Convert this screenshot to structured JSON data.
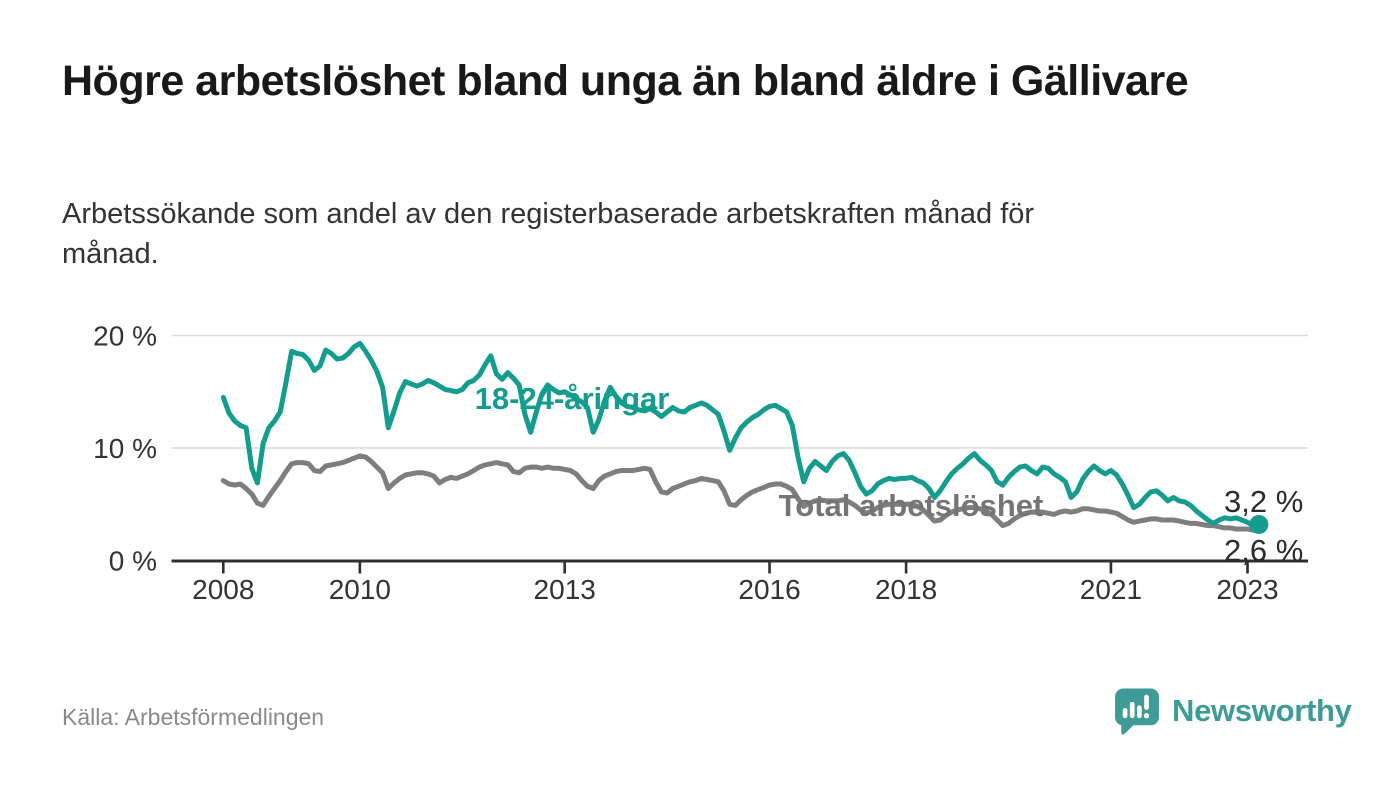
{
  "header": {
    "title": "Högre arbetslöshet bland unga än bland äldre i Gällivare",
    "subtitle": "Arbetssökande som andel av den registerbaserade arbetskraften månad för månad."
  },
  "footer": {
    "source": "Källa: Arbetsförmedlingen",
    "brand_name": "Newsworthy"
  },
  "colors": {
    "youth_line": "#149C8E",
    "total_line": "#7E7E7E",
    "total_label": "#757575",
    "axis": "#2F2F2F",
    "grid": "#DBDBDB",
    "tick_text": "#333333",
    "value_text": "#2B2B2B",
    "brand_teal": "#3E9B95"
  },
  "chart_data": {
    "type": "line",
    "title": "Högre arbetslöshet bland unga än bland äldre i Gällivare",
    "subtitle": "Arbetssökande som andel av den registerbaserade arbetskraften månad för månad.",
    "unit": "%",
    "frequency": "monthly",
    "x_start_year": 2008,
    "x_end": "2023-03",
    "ylim": [
      0,
      20.5
    ],
    "grid": "horizontal",
    "y_ticks": [
      0,
      10,
      20
    ],
    "y_tick_labels": [
      "0 %",
      "10 %",
      "20 %"
    ],
    "x_ticks": [
      2008,
      2010,
      2013,
      2016,
      2018,
      2021,
      2023
    ],
    "x_tick_labels": [
      "2008",
      "2010",
      "2013",
      "2016",
      "2018",
      "2021",
      "2023"
    ],
    "series": [
      {
        "name": "Total arbetslöshet",
        "end_label": "2,6 %",
        "end_value": 2.6,
        "values_by_year": [
          [
            7.1,
            6.8,
            6.7,
            6.8,
            6.4,
            5.9,
            5.1,
            4.9,
            5.7,
            6.4,
            7.1,
            7.9
          ],
          [
            8.6,
            8.7,
            8.7,
            8.6,
            8.0,
            7.9,
            8.4,
            8.5,
            8.6,
            8.7,
            8.9,
            9.1
          ],
          [
            9.3,
            9.2,
            8.8,
            8.3,
            7.8,
            6.4,
            6.9,
            7.3,
            7.6,
            7.7,
            7.8,
            7.8
          ],
          [
            7.7,
            7.5,
            6.9,
            7.2,
            7.4,
            7.3,
            7.5,
            7.7,
            8.0,
            8.3,
            8.5,
            8.6
          ],
          [
            8.7,
            8.6,
            8.5,
            7.9,
            7.8,
            8.2,
            8.3,
            8.3,
            8.2,
            8.3,
            8.2,
            8.2
          ],
          [
            8.1,
            8.0,
            7.7,
            7.1,
            6.6,
            6.4,
            7.1,
            7.5,
            7.7,
            7.9,
            8.0,
            8.0
          ],
          [
            8.0,
            8.1,
            8.2,
            8.1,
            7.0,
            6.1,
            6.0,
            6.4,
            6.6,
            6.8,
            7.0,
            7.1
          ],
          [
            7.3,
            7.2,
            7.1,
            7.0,
            6.2,
            5.0,
            4.9,
            5.4,
            5.8,
            6.1,
            6.3,
            6.5
          ],
          [
            6.7,
            6.8,
            6.8,
            6.6,
            6.3,
            5.5,
            4.8,
            5.1,
            5.3,
            5.4,
            5.3,
            5.3
          ],
          [
            5.3,
            5.4,
            5.2,
            4.9,
            4.5,
            4.2,
            4.4,
            4.7,
            4.9,
            5.0,
            5.0,
            5.0
          ],
          [
            5.0,
            5.0,
            4.8,
            4.5,
            4.0,
            3.5,
            3.6,
            4.0,
            4.3,
            4.5,
            4.6,
            4.7
          ],
          [
            4.7,
            4.6,
            4.4,
            4.1,
            3.6,
            3.1,
            3.3,
            3.7,
            4.0,
            4.2,
            4.3,
            4.3
          ],
          [
            4.3,
            4.2,
            4.1,
            4.3,
            4.4,
            4.3,
            4.4,
            4.6,
            4.6,
            4.5,
            4.4,
            4.4
          ],
          [
            4.3,
            4.2,
            3.9,
            3.6,
            3.4,
            3.5,
            3.6,
            3.7,
            3.7,
            3.6,
            3.6,
            3.6
          ],
          [
            3.5,
            3.4,
            3.3,
            3.3,
            3.2,
            3.1,
            3.1,
            3.0,
            2.9,
            2.9,
            2.8,
            2.8
          ],
          [
            2.8,
            2.7,
            2.6
          ]
        ]
      },
      {
        "name": "18-24-åringar",
        "end_label": "3,2 %",
        "end_value": 3.2,
        "values_by_year": [
          [
            14.5,
            13.1,
            12.4,
            12.0,
            11.8,
            8.2,
            6.9,
            10.4,
            11.8,
            12.4,
            13.2,
            15.8
          ],
          [
            18.6,
            18.4,
            18.3,
            17.8,
            16.9,
            17.3,
            18.7,
            18.4,
            17.9,
            18.0,
            18.4,
            19.0
          ],
          [
            19.3,
            18.6,
            17.8,
            16.8,
            15.4,
            11.8,
            13.3,
            14.9,
            15.9,
            15.7,
            15.5,
            15.7
          ],
          [
            16.0,
            15.8,
            15.5,
            15.2,
            15.1,
            15.0,
            15.2,
            15.8,
            16.0,
            16.5,
            17.4,
            18.2
          ],
          [
            16.6,
            16.1,
            16.7,
            16.2,
            15.6,
            13.0,
            11.4,
            13.2,
            14.8,
            15.6,
            15.2,
            14.9
          ],
          [
            15.0,
            14.7,
            14.4,
            14.1,
            13.6,
            11.4,
            12.5,
            14.2,
            15.4,
            14.6,
            14.0,
            13.7
          ],
          [
            13.6,
            13.4,
            13.3,
            13.5,
            13.2,
            12.8,
            13.2,
            13.6,
            13.3,
            13.2,
            13.6,
            13.8
          ],
          [
            14.0,
            13.8,
            13.4,
            13.0,
            11.5,
            9.8,
            10.9,
            11.8,
            12.3,
            12.7,
            13.0,
            13.4
          ],
          [
            13.7,
            13.8,
            13.5,
            13.2,
            12.0,
            9.2,
            7.0,
            8.2,
            8.8,
            8.4,
            8.0,
            8.8
          ],
          [
            9.3,
            9.5,
            8.9,
            7.8,
            6.6,
            5.9,
            6.2,
            6.8,
            7.1,
            7.3,
            7.2,
            7.3
          ],
          [
            7.3,
            7.4,
            7.1,
            6.9,
            6.4,
            5.6,
            6.2,
            7.0,
            7.7,
            8.2,
            8.6,
            9.1
          ],
          [
            9.5,
            8.9,
            8.5,
            8.0,
            7.0,
            6.7,
            7.4,
            7.9,
            8.3,
            8.4,
            8.0,
            7.7
          ],
          [
            8.3,
            8.2,
            7.7,
            7.4,
            7.0,
            5.6,
            6.1,
            7.2,
            7.9,
            8.4,
            8.0,
            7.7
          ],
          [
            8.0,
            7.6,
            6.8,
            5.8,
            4.7,
            5.0,
            5.6,
            6.1,
            6.2,
            5.8,
            5.3,
            5.6
          ],
          [
            5.3,
            5.2,
            4.9,
            4.4,
            4.0,
            3.6,
            3.3,
            3.6,
            3.8,
            3.7,
            3.8,
            3.6
          ],
          [
            3.4,
            3.1,
            3.2
          ]
        ]
      }
    ],
    "annotations": [
      {
        "text": "18-24-åringar",
        "series": "18-24-åringar"
      },
      {
        "text": "Total arbetslöshet",
        "series": "Total arbetslöshet"
      }
    ]
  }
}
